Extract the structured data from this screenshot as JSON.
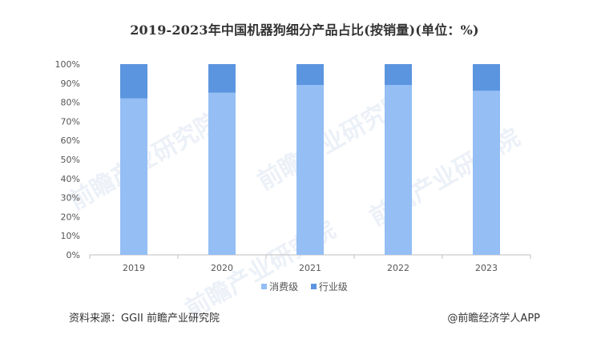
{
  "colors": {
    "consumer": "#94BEF4",
    "industry": "#5B95DF",
    "axis": "#bfbfbf",
    "text": "#555555"
  },
  "chart_data": {
    "type": "bar",
    "stacked": true,
    "title": "2019-2023年中国机器狗细分产品占比(按销量)(单位：%)",
    "categories": [
      "2019",
      "2020",
      "2021",
      "2022",
      "2023"
    ],
    "series": [
      {
        "name": "消费级",
        "values": [
          82,
          85,
          89,
          89,
          86
        ]
      },
      {
        "name": "行业级",
        "values": [
          18,
          15,
          11,
          11,
          14
        ]
      }
    ],
    "yticks": [
      "0%",
      "10%",
      "20%",
      "30%",
      "40%",
      "50%",
      "60%",
      "70%",
      "80%",
      "90%",
      "100%"
    ],
    "ylim": [
      0,
      100
    ],
    "legend_position": "bottom",
    "grid": false
  },
  "footer": {
    "source": "资料来源：GGII 前瞻产业研究院",
    "brand": "@前瞻经济学人APP"
  },
  "watermark": "前瞻产业研究院"
}
